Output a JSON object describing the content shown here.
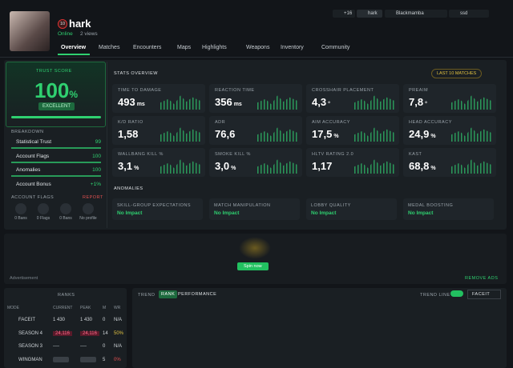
{
  "header": {
    "level": "10",
    "name": "hark",
    "status": "Online",
    "views": "2 views",
    "tabs": [
      "+16",
      "hark",
      "Blackmamba",
      "ssd"
    ],
    "nav": [
      "Overview",
      "Matches",
      "Encounters",
      "Maps",
      "Highlights",
      "Weapons",
      "Inventory",
      "Community"
    ]
  },
  "trust": {
    "title": "TRUST SCORE",
    "score": "100",
    "unit": "%",
    "rating": "EXCELLENT",
    "breakdown_title": "BREAKDOWN",
    "breakdown": [
      {
        "label": "Statistical Trust",
        "value": "99"
      },
      {
        "label": "Account Flags",
        "value": "100"
      },
      {
        "label": "Anomalies",
        "value": "100"
      },
      {
        "label": "Account Bonus",
        "value": "+1%"
      }
    ],
    "flags_title": "ACCOUNT FLAGS",
    "report": "REPORT",
    "flags": [
      "0 Bans",
      "0 Flags",
      "0 Bans",
      "No profile"
    ]
  },
  "stats": {
    "title": "STATS OVERVIEW",
    "filter": "LAST 10 MATCHES",
    "cards": [
      {
        "label": "TIME TO DAMAGE",
        "value": "493",
        "unit": "ms"
      },
      {
        "label": "REACTION TIME",
        "value": "356",
        "unit": "ms"
      },
      {
        "label": "CROSSHAIR PLACEMENT",
        "value": "4,3",
        "unit": "°"
      },
      {
        "label": "PREAIM",
        "value": "7,8",
        "unit": "°"
      },
      {
        "label": "K/D RATIO",
        "value": "1,58",
        "unit": ""
      },
      {
        "label": "ADR",
        "value": "76,6",
        "unit": ""
      },
      {
        "label": "AIM ACCURACY",
        "value": "17,5",
        "unit": "%"
      },
      {
        "label": "HEAD ACCURACY",
        "value": "24,9",
        "unit": "%"
      },
      {
        "label": "WALLBANG KILL %",
        "value": "3,1",
        "unit": "%"
      },
      {
        "label": "SMOKE KILL %",
        "value": "3,0",
        "unit": "%"
      },
      {
        "label": "HLTV RATING 2.0",
        "value": "1,17",
        "unit": ""
      },
      {
        "label": "KAST",
        "value": "68,8",
        "unit": "%"
      }
    ]
  },
  "anomalies": {
    "title": "ANOMALIES",
    "cards": [
      {
        "label": "SKILL-GROUP EXPECTATIONS",
        "status": "No Impact"
      },
      {
        "label": "MATCH MANIPULATION",
        "status": "No Impact"
      },
      {
        "label": "LOBBY QUALITY",
        "status": "No Impact"
      },
      {
        "label": "MEDAL BOOSTING",
        "status": "No Impact"
      }
    ]
  },
  "ad": {
    "button": "Spin now",
    "label": "Advertisement",
    "remove": "REMOVE ADS"
  },
  "ranks": {
    "title": "RANKS",
    "columns": [
      "MODE",
      "CURRENT",
      "PEAK",
      "M",
      "WR"
    ],
    "rows": [
      [
        "FACEIT",
        "1 430",
        "1 430",
        "0",
        "N/A"
      ],
      [
        "SEASON 4",
        "24,116",
        "24,116",
        "14",
        "50%"
      ],
      [
        "SEASON 3",
        "----",
        "----",
        "0",
        "N/A"
      ],
      [
        "WINGMAN",
        null,
        null,
        "5",
        "0%"
      ]
    ]
  },
  "trend": {
    "title": "TREND",
    "tabs": [
      "RANK",
      "PERFORMANCE"
    ],
    "toggle": "TREND LINE",
    "select": "FACEIT"
  }
}
